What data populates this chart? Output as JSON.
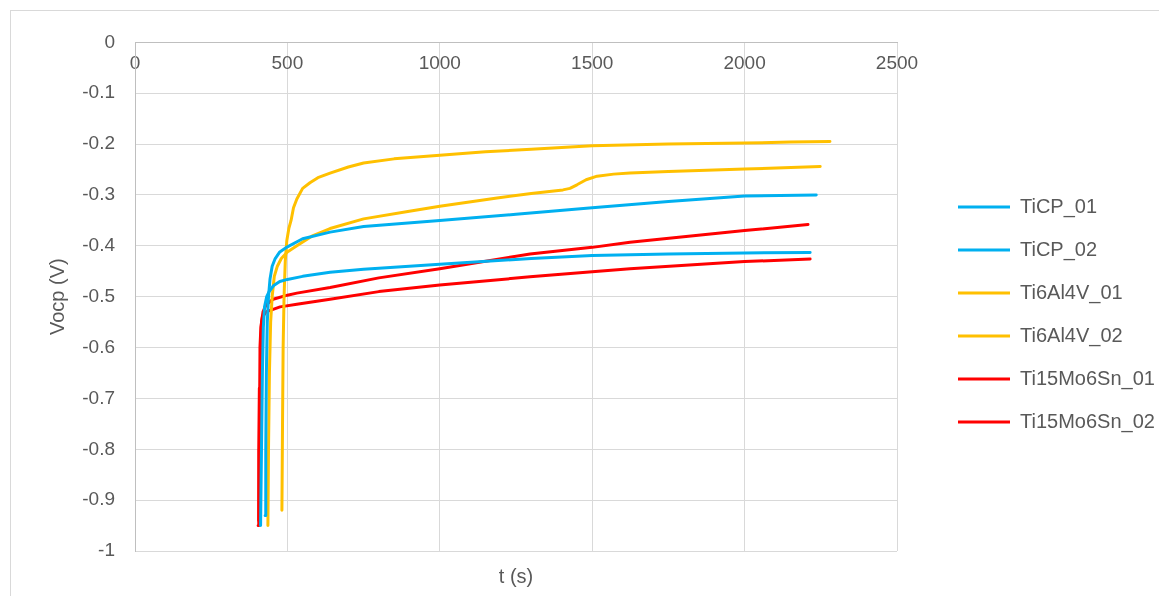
{
  "chart_data": {
    "type": "line",
    "xlabel": "t (s)",
    "ylabel": "Vocp (V)",
    "xlim": [
      0,
      2500
    ],
    "xticks": [
      0,
      500,
      1000,
      1500,
      2000,
      2500
    ],
    "ylim": [
      -1,
      0
    ],
    "yticks": [
      -1,
      -0.9,
      -0.8,
      -0.7,
      -0.6,
      -0.5,
      -0.4,
      -0.3,
      -0.2,
      -0.1,
      0
    ],
    "grid": true,
    "legend": "right",
    "marker": "none",
    "series": [
      {
        "name": "TiCP_01",
        "color": "#00b0f0",
        "x": [
          427,
          429,
          431,
          434,
          438,
          443,
          450,
          460,
          475,
          500,
          550,
          640,
          750,
          1000,
          1250,
          1500,
          1750,
          2000,
          2235
        ],
        "values": [
          -0.93,
          -0.8,
          -0.65,
          -0.55,
          -0.5,
          -0.465,
          -0.44,
          -0.425,
          -0.412,
          -0.402,
          -0.386,
          -0.373,
          -0.362,
          -0.35,
          -0.338,
          -0.325,
          -0.313,
          -0.302,
          -0.3
        ]
      },
      {
        "name": "TiCP_02",
        "color": "#00b0f0",
        "x": [
          412,
          415,
          418,
          421,
          425,
          432,
          440,
          455,
          475,
          500,
          550,
          640,
          750,
          1000,
          1300,
          1500,
          1750,
          2000,
          2215
        ],
        "values": [
          -0.95,
          -0.8,
          -0.65,
          -0.56,
          -0.52,
          -0.5,
          -0.49,
          -0.478,
          -0.47,
          -0.466,
          -0.46,
          -0.452,
          -0.446,
          -0.436,
          -0.425,
          -0.419,
          -0.416,
          -0.414,
          -0.413
        ]
      },
      {
        "name": "Ti6Al4V_01",
        "color": "#ffc000",
        "x": [
          482,
          484,
          486,
          489,
          493,
          498,
          505,
          512,
          520,
          531,
          550,
          574,
          600,
          640,
          700,
          750,
          850,
          1000,
          1150,
          1300,
          1500,
          1750,
          2000,
          2150,
          2280
        ],
        "values": [
          -0.92,
          -0.75,
          -0.6,
          -0.5,
          -0.43,
          -0.39,
          -0.365,
          -0.35,
          -0.325,
          -0.308,
          -0.287,
          -0.276,
          -0.266,
          -0.257,
          -0.245,
          -0.237,
          -0.229,
          -0.222,
          -0.215,
          -0.21,
          -0.203,
          -0.2,
          -0.198,
          -0.196,
          -0.195
        ]
      },
      {
        "name": "Ti6Al4V_02",
        "color": "#ffc000",
        "x": [
          436,
          438,
          441,
          445,
          450,
          457,
          467,
          480,
          500,
          531,
          580,
          640,
          750,
          900,
          1000,
          1188,
          1300,
          1404,
          1427,
          1450,
          1480,
          1516,
          1570,
          1624,
          1750,
          2000,
          2248
        ],
        "values": [
          -0.95,
          -0.8,
          -0.65,
          -0.55,
          -0.5,
          -0.46,
          -0.44,
          -0.425,
          -0.412,
          -0.4,
          -0.381,
          -0.366,
          -0.347,
          -0.332,
          -0.322,
          -0.306,
          -0.297,
          -0.29,
          -0.287,
          -0.28,
          -0.27,
          -0.263,
          -0.259,
          -0.257,
          -0.254,
          -0.249,
          -0.244
        ]
      },
      {
        "name": "Ti15Mo6Sn_01",
        "color": "#ff0000",
        "x": [
          406,
          408,
          410,
          412,
          415,
          420,
          430,
          453,
          500,
          531,
          640,
          800,
          1000,
          1296,
          1500,
          1624,
          2000,
          2208
        ],
        "values": [
          -0.94,
          -0.8,
          -0.68,
          -0.6,
          -0.55,
          -0.53,
          -0.516,
          -0.505,
          -0.497,
          -0.493,
          -0.482,
          -0.463,
          -0.445,
          -0.416,
          -0.403,
          -0.393,
          -0.37,
          -0.358
        ]
      },
      {
        "name": "Ti15Mo6Sn_02",
        "color": "#ff0000",
        "x": [
          404,
          406,
          408,
          410,
          413,
          418,
          430,
          476,
          531,
          640,
          800,
          1000,
          1296,
          1500,
          1624,
          2000,
          2215
        ],
        "values": [
          -0.95,
          -0.8,
          -0.68,
          -0.6,
          -0.56,
          -0.54,
          -0.53,
          -0.52,
          -0.515,
          -0.505,
          -0.49,
          -0.477,
          -0.461,
          -0.451,
          -0.445,
          -0.431,
          -0.426
        ]
      }
    ]
  }
}
